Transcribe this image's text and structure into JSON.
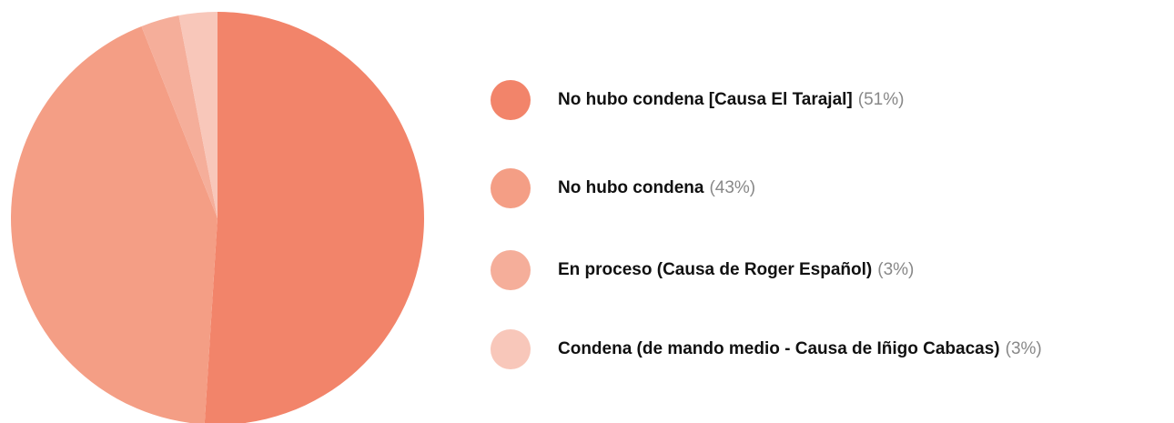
{
  "chart_data": {
    "type": "pie",
    "categories": [
      "No hubo condena [Causa El Tarajal]",
      "No hubo condena",
      "En proceso (Causa de Roger Español)",
      "Condena (de mando medio - Causa de Iñigo Cabacas)"
    ],
    "values": [
      51,
      43,
      3,
      3
    ],
    "value_labels": [
      "(51%)",
      "(43%)",
      "(3%)",
      "(3%)"
    ],
    "colors": [
      "#f2846a",
      "#f49e85",
      "#f5ae9a",
      "#f8c7ba"
    ],
    "legend": "right"
  }
}
